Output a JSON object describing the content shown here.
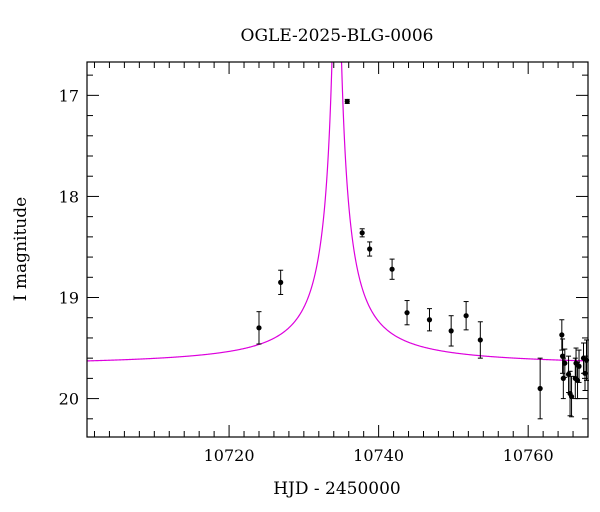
{
  "chart_data": {
    "type": "scatter",
    "title": "OGLE-2025-BLG-0006",
    "xlabel": "HJD - 2450000",
    "ylabel": "I magnitude",
    "xlim": [
      10701,
      10768
    ],
    "ylim": [
      20.38,
      16.67
    ],
    "y_inverted": true,
    "x_ticks_major": [
      10720,
      10740,
      10760
    ],
    "x_ticks_minor_step": 2,
    "y_ticks_major": [
      17,
      18,
      19,
      20
    ],
    "y_ticks_minor_step": 0.2,
    "grid": false,
    "colors": {
      "model": "#dd00dd",
      "points": "#000000",
      "axes": "#000000"
    },
    "model": {
      "name": "",
      "t0": 10734.4,
      "baseline_mag": 19.69,
      "peak_amplitude": 55,
      "tau_scale": 3.6
    },
    "series": [
      {
        "name": "",
        "points": [
          {
            "x": 10724.0,
            "y": 19.3,
            "err": 0.16
          },
          {
            "x": 10726.9,
            "y": 18.85,
            "err": 0.12
          },
          {
            "x": 10735.8,
            "y": 17.06,
            "err": 0.02
          },
          {
            "x": 10737.8,
            "y": 18.36,
            "err": 0.04
          },
          {
            "x": 10738.8,
            "y": 18.52,
            "err": 0.07
          },
          {
            "x": 10741.8,
            "y": 18.72,
            "err": 0.1
          },
          {
            "x": 10743.8,
            "y": 19.15,
            "err": 0.12
          },
          {
            "x": 10746.8,
            "y": 19.22,
            "err": 0.11
          },
          {
            "x": 10749.7,
            "y": 19.33,
            "err": 0.15
          },
          {
            "x": 10751.7,
            "y": 19.18,
            "err": 0.14
          },
          {
            "x": 10753.6,
            "y": 19.42,
            "err": 0.18
          },
          {
            "x": 10761.6,
            "y": 19.9,
            "err": 0.3
          },
          {
            "x": 10764.5,
            "y": 19.37,
            "err": 0.15
          },
          {
            "x": 10764.6,
            "y": 19.58,
            "err": 0.17
          },
          {
            "x": 10764.7,
            "y": 19.8,
            "err": 0.2
          },
          {
            "x": 10764.9,
            "y": 19.65,
            "err": 0.14
          },
          {
            "x": 10765.4,
            "y": 19.76,
            "err": 0.18
          },
          {
            "x": 10765.6,
            "y": 19.95,
            "err": 0.22
          },
          {
            "x": 10765.8,
            "y": 19.98,
            "err": 0.2
          },
          {
            "x": 10766.3,
            "y": 19.8,
            "err": 0.2
          },
          {
            "x": 10766.4,
            "y": 19.65,
            "err": 0.15
          },
          {
            "x": 10766.6,
            "y": 19.82,
            "err": 0.18
          },
          {
            "x": 10766.8,
            "y": 19.68,
            "err": 0.16
          },
          {
            "x": 10767.4,
            "y": 19.6,
            "err": 0.15
          },
          {
            "x": 10767.6,
            "y": 19.75,
            "err": 0.17
          },
          {
            "x": 10767.8,
            "y": 19.62,
            "err": 0.2
          }
        ]
      }
    ]
  }
}
